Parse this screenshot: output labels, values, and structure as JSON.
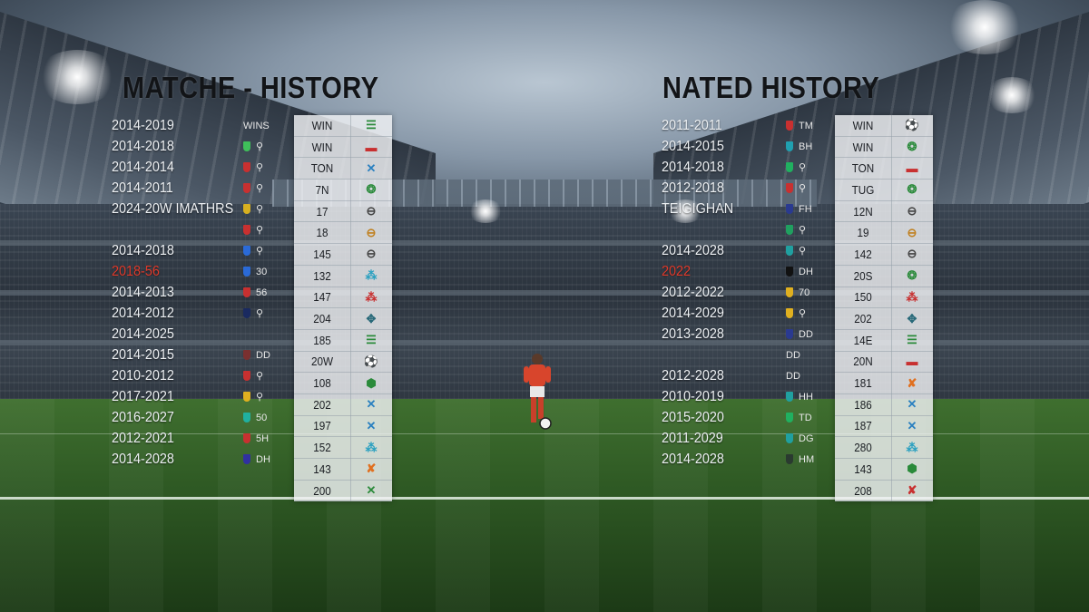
{
  "left_panel": {
    "title": "MATCHE - HISTORY",
    "years": [
      "2014-2019",
      "2014-2018",
      "2014-2014",
      "2014-2011",
      "2024-20W IMATHRS",
      "",
      "2014-2018",
      "2018-56",
      "2014-2013",
      "2014-2012",
      "2014-2025",
      "2014-2015",
      "2010-2012",
      "2017-2021",
      "2016-2027",
      "2012-2021",
      "2014-2028"
    ],
    "badges": [
      {
        "crest": "",
        "text": "WINS"
      },
      {
        "crest": "#3fbf5a",
        "text": "⚲"
      },
      {
        "crest": "#c83030",
        "text": "⚲"
      },
      {
        "crest": "#c83030",
        "text": "⚲"
      },
      {
        "crest": "#d8b020",
        "text": "⚲"
      },
      {
        "crest": "#c83030",
        "text": "⚲"
      },
      {
        "crest": "#2a6ad8",
        "text": "⚲"
      },
      {
        "crest": "#2a6ad8",
        "text": "30"
      },
      {
        "crest": "#c83030",
        "text": "56"
      },
      {
        "crest": "#1a2a60",
        "text": "⚲"
      },
      {
        "crest": "",
        "text": ""
      },
      {
        "crest": "#7a3030",
        "text": "DD"
      },
      {
        "crest": "#c83030",
        "text": "⚲"
      },
      {
        "crest": "#e0b020",
        "text": "⚲"
      },
      {
        "crest": "#20b0a0",
        "text": "50"
      },
      {
        "crest": "#c83030",
        "text": "5H"
      },
      {
        "crest": "#3030a0",
        "text": "DH"
      }
    ],
    "results": [
      "WIN",
      "WIN",
      "TON",
      "7N",
      "17",
      "18",
      "145",
      "132",
      "147",
      "204",
      "185",
      "20W",
      "108",
      "202",
      "197",
      "152",
      "143",
      "200"
    ],
    "icons": [
      {
        "glyph": "☰",
        "color": "#2a8a3a"
      },
      {
        "glyph": "▬",
        "color": "#c83030"
      },
      {
        "glyph": "✕",
        "color": "#2a80c0"
      },
      {
        "glyph": "❂",
        "color": "#2a8a3a"
      },
      {
        "glyph": "⊖",
        "color": "#444444"
      },
      {
        "glyph": "⊖",
        "color": "#c08020"
      },
      {
        "glyph": "⊖",
        "color": "#444444"
      },
      {
        "glyph": "⁂",
        "color": "#2aa0c0"
      },
      {
        "glyph": "⁂",
        "color": "#c83030"
      },
      {
        "glyph": "✥",
        "color": "#2a6a7a"
      },
      {
        "glyph": "☰",
        "color": "#2a8a3a"
      },
      {
        "glyph": "⚽",
        "color": "#222222"
      },
      {
        "glyph": "⬢",
        "color": "#2a8a3a"
      },
      {
        "glyph": "✕",
        "color": "#2a80c0"
      },
      {
        "glyph": "✕",
        "color": "#2a80c0"
      },
      {
        "glyph": "⁂",
        "color": "#2aa0c0"
      },
      {
        "glyph": "✘",
        "color": "#e07020"
      },
      {
        "glyph": "✕",
        "color": "#2a8a3a"
      }
    ]
  },
  "right_panel": {
    "title": "NATED HISTORY",
    "years": [
      "2011-2011",
      "2014-2015",
      "2014-2018",
      "2012-2018",
      "TEIGIGHAN",
      "",
      "2014-2028",
      "2022",
      "2012-2022",
      "2014-2029",
      "2013-2028",
      "",
      "2012-2028",
      "2010-2019",
      "2015-2020",
      "2011-2029",
      "2014-2028"
    ],
    "badges": [
      {
        "crest": "#c83030",
        "text": "TM"
      },
      {
        "crest": "#20a0b0",
        "text": "BH"
      },
      {
        "crest": "#20b060",
        "text": "⚲"
      },
      {
        "crest": "#c83030",
        "text": "⚲"
      },
      {
        "crest": "#2a3a90",
        "text": "FH"
      },
      {
        "crest": "#20a060",
        "text": "⚲"
      },
      {
        "crest": "#20a0a0",
        "text": "⚲"
      },
      {
        "crest": "#111111",
        "text": "DH"
      },
      {
        "crest": "#e0b020",
        "text": "70"
      },
      {
        "crest": "#e0b020",
        "text": "⚲"
      },
      {
        "crest": "#2a3a90",
        "text": "DD"
      },
      {
        "crest": "",
        "text": "DD"
      },
      {
        "crest": "",
        "text": "DD"
      },
      {
        "crest": "#20a0a0",
        "text": "HH"
      },
      {
        "crest": "#20b060",
        "text": "TD"
      },
      {
        "crest": "#20a0a0",
        "text": "DG"
      },
      {
        "crest": "#2a3a30",
        "text": "HM"
      }
    ],
    "results": [
      "WIN",
      "WIN",
      "TON",
      "TUG",
      "12N",
      "19",
      "142",
      "20S",
      "150",
      "202",
      "14E",
      "20N",
      "181",
      "186",
      "187",
      "280",
      "143",
      "208"
    ],
    "icons": [
      {
        "glyph": "⚽",
        "color": "#222222"
      },
      {
        "glyph": "❂",
        "color": "#2a8a3a"
      },
      {
        "glyph": "▬",
        "color": "#c83030"
      },
      {
        "glyph": "❂",
        "color": "#2a8a3a"
      },
      {
        "glyph": "⊖",
        "color": "#444444"
      },
      {
        "glyph": "⊖",
        "color": "#c08020"
      },
      {
        "glyph": "⊖",
        "color": "#444444"
      },
      {
        "glyph": "❂",
        "color": "#2a8a3a"
      },
      {
        "glyph": "⁂",
        "color": "#c83030"
      },
      {
        "glyph": "✥",
        "color": "#2a6a7a"
      },
      {
        "glyph": "☰",
        "color": "#2a8a3a"
      },
      {
        "glyph": "▬",
        "color": "#c83030"
      },
      {
        "glyph": "✘",
        "color": "#e07020"
      },
      {
        "glyph": "✕",
        "color": "#2a80c0"
      },
      {
        "glyph": "✕",
        "color": "#2a80c0"
      },
      {
        "glyph": "⁂",
        "color": "#2aa0c0"
      },
      {
        "glyph": "⬢",
        "color": "#2a8a3a"
      },
      {
        "glyph": "✘",
        "color": "#c83030"
      }
    ]
  },
  "highlight_color": "#e0392a",
  "win_row_color": "#f0c53f"
}
